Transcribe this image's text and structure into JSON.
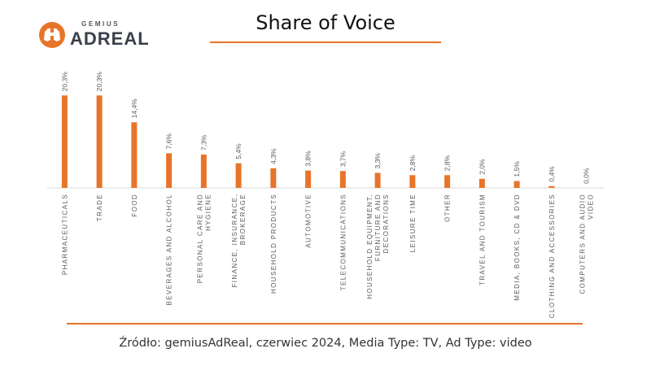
{
  "header": {
    "logo_top": "GEMIUS",
    "logo_main": "ADREAL",
    "title": "Share of Voice"
  },
  "chart_data": {
    "type": "bar",
    "title": "Share of Voice",
    "value_unit": "%",
    "categories": [
      "PHARMACEUTICALS",
      "TRADE",
      "FOOD",
      "BEVERAGES AND ALCOHOL",
      "PERSONAL CARE AND HYGIENE",
      "FINANCE, INSURANCE, BROKERAGE",
      "HOUSEHOLD PRODUCTS",
      "AUTOMOTIVE",
      "TELECOMMUNICATIONS",
      "HOUSEHOLD EQUIPMENT, FURNITURE AND DECORATIONS",
      "LEISURE TIME",
      "OTHER",
      "TRAVEL AND TOURISM",
      "MEDIA, BOOKS, CD & DVD",
      "CLOTHING AND ACCESSORIES",
      "COMPUTERS AND AUDIO VIDEO"
    ],
    "category_lines": [
      [
        "PHARMACEUTICALS"
      ],
      [
        "TRADE"
      ],
      [
        "FOOD"
      ],
      [
        "BEVERAGES AND ALCOHOL"
      ],
      [
        "PERSONAL CARE AND",
        "HYGIENE"
      ],
      [
        "FINANCE, INSURANCE,",
        "BROKERAGE"
      ],
      [
        "HOUSEHOLD PRODUCTS"
      ],
      [
        "AUTOMOTIVE"
      ],
      [
        "TELECOMMUNICATIONS"
      ],
      [
        "HOUSEHOLD EQUIPMENT,",
        "FURNITURE AND",
        "DECORATIONS"
      ],
      [
        "LEISURE TIME"
      ],
      [
        "OTHER"
      ],
      [
        "TRAVEL AND TOURISM"
      ],
      [
        "MEDIA, BOOKS, CD & DVD"
      ],
      [
        "CLOTHING AND ACCESSORIES"
      ],
      [
        "COMPUTERS AND AUDIO",
        "VIDEO"
      ]
    ],
    "values": [
      20.3,
      20.3,
      14.4,
      7.6,
      7.3,
      5.4,
      4.3,
      3.8,
      3.7,
      3.3,
      2.8,
      2.8,
      2.0,
      1.5,
      0.4,
      0.0
    ],
    "data_labels": [
      "20,3%",
      "20,3%",
      "14,4%",
      "7,6%",
      "7,3%",
      "5,4%",
      "4,3%",
      "3,8%",
      "3,7%",
      "3,3%",
      "2,8%",
      "2,8%",
      "2,0%",
      "1,5%",
      "0,4%",
      "0,0%"
    ],
    "ylim": [
      0,
      25
    ],
    "xlabel": "",
    "ylabel": "",
    "grid": false,
    "legend": "none",
    "bar_color": "#e8742a"
  },
  "footer": {
    "source": "Źródło: gemiusAdReal, czerwiec 2024, Media Type: TV, Ad Type: video"
  },
  "colors": {
    "accent": "#e8742a",
    "label_text": "#595959",
    "axis": "#d9d9d9"
  }
}
